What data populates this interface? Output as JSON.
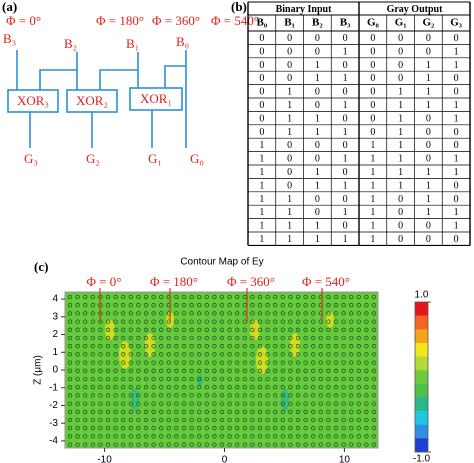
{
  "panel_a": {
    "label": "(a)",
    "phases": [
      "Φ = 0°",
      "Φ = 180°",
      "Φ = 360°",
      "Φ = 540°"
    ],
    "inputs": [
      "B₃",
      "B₂",
      "B₁",
      "B₀"
    ],
    "gates": [
      "XOR₃",
      "XOR₂",
      "XOR₁"
    ],
    "outputs": [
      "G₃",
      "G₂",
      "G₁",
      "G₀"
    ]
  },
  "panel_b": {
    "label": "(b)",
    "groups": [
      "Binary Input",
      "Gray Output"
    ],
    "columns": [
      "B₀",
      "B₁",
      "B₂",
      "B₃",
      "G₀",
      "G₁",
      "G₂",
      "G₃"
    ],
    "rows": [
      [
        0,
        0,
        0,
        0,
        0,
        0,
        0,
        0
      ],
      [
        0,
        0,
        0,
        1,
        0,
        0,
        0,
        1
      ],
      [
        0,
        0,
        1,
        0,
        0,
        0,
        1,
        1
      ],
      [
        0,
        0,
        1,
        1,
        0,
        0,
        1,
        0
      ],
      [
        0,
        1,
        0,
        0,
        0,
        1,
        1,
        0
      ],
      [
        0,
        1,
        0,
        1,
        0,
        1,
        1,
        1
      ],
      [
        0,
        1,
        1,
        0,
        0,
        1,
        0,
        1
      ],
      [
        0,
        1,
        1,
        1,
        0,
        1,
        0,
        0
      ],
      [
        1,
        0,
        0,
        0,
        1,
        1,
        0,
        0
      ],
      [
        1,
        0,
        0,
        1,
        1,
        1,
        0,
        1
      ],
      [
        1,
        0,
        1,
        0,
        1,
        1,
        1,
        1
      ],
      [
        1,
        0,
        1,
        1,
        1,
        1,
        1,
        0
      ],
      [
        1,
        1,
        0,
        0,
        1,
        0,
        1,
        0
      ],
      [
        1,
        1,
        0,
        1,
        1,
        0,
        1,
        1
      ],
      [
        1,
        1,
        1,
        0,
        1,
        0,
        0,
        1
      ],
      [
        1,
        1,
        1,
        1,
        1,
        0,
        0,
        0
      ]
    ]
  },
  "chart_data": {
    "type": "contour",
    "label": "(c)",
    "title": "Contour Map of Ey",
    "phases": [
      "Φ = 0°",
      "Φ = 180°",
      "Φ = 360°",
      "Φ = 540°"
    ],
    "ylabel": "Z (μm)",
    "xlim": [
      -13.3,
      12.8
    ],
    "ylim": [
      -4.4,
      4.4
    ],
    "xticks": [
      -10,
      0,
      10
    ],
    "yticks": [
      4,
      3,
      2,
      1,
      0,
      -1,
      -2,
      -3,
      -4
    ],
    "colorbar_lim": [
      -1,
      1
    ],
    "colorbar_ticks": [
      {
        "value": 1,
        "label": "1.0"
      },
      {
        "value": -1,
        "label": "-1.0"
      }
    ],
    "colorbar_colors": [
      "#e8141c",
      "#f26522",
      "#f7a21b",
      "#f2e51a",
      "#b6d936",
      "#6ccb3c",
      "#4cc04a",
      "#27b88c",
      "#1fc6e0",
      "#2e8ee0",
      "#1f3fd1"
    ],
    "field_color": "#62cc3a"
  }
}
